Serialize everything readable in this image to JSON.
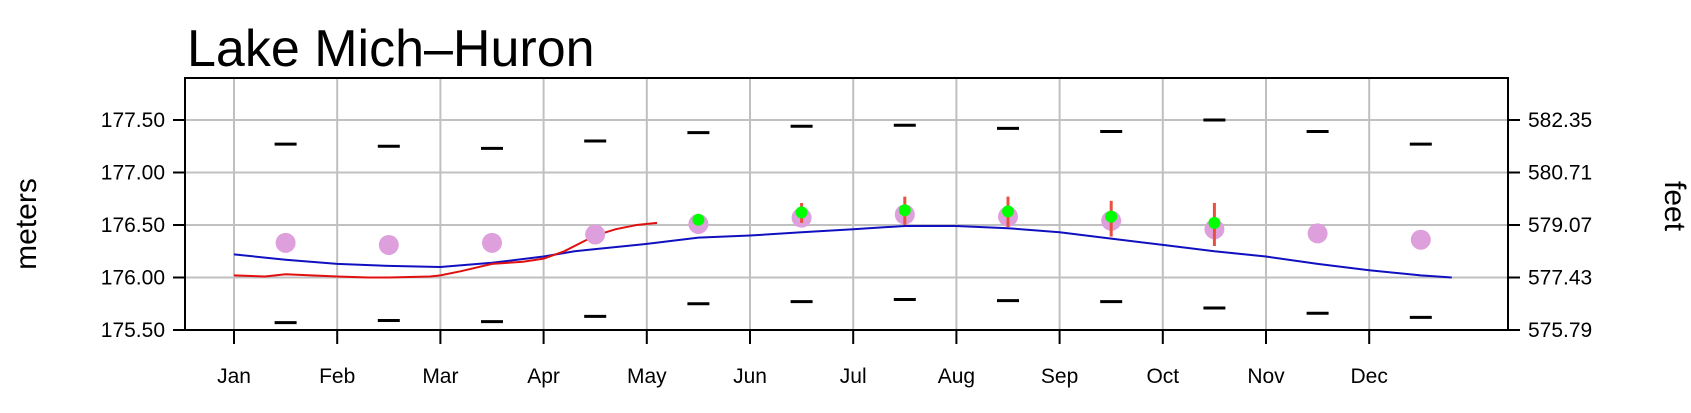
{
  "chart_data": {
    "type": "line",
    "title": "Lake Mich–Huron",
    "ylabel_left": "meters",
    "ylabel_right": "feet",
    "ylim_meters": [
      175.5,
      177.9
    ],
    "left_ticks": [
      "175.50",
      "176.00",
      "176.50",
      "177.00",
      "177.50"
    ],
    "left_tick_values": [
      175.5,
      176.0,
      176.5,
      177.0,
      177.5
    ],
    "right_ticks": [
      "575.79",
      "577.43",
      "579.07",
      "580.71",
      "582.35"
    ],
    "months": [
      "Jan",
      "Feb",
      "Mar",
      "Apr",
      "May",
      "Jun",
      "Jul",
      "Aug",
      "Sep",
      "Oct",
      "Nov",
      "Dec"
    ],
    "grid": true,
    "colors": {
      "blue_line": "#1010c0",
      "red_line": "#e01010",
      "monthly_mean": "#dda0dd",
      "forecast": "#00ff00",
      "forecast_range": "#e85040",
      "extremes": "#000000"
    },
    "monthly_max": [
      177.27,
      177.25,
      177.23,
      177.3,
      177.38,
      177.44,
      177.45,
      177.42,
      177.39,
      177.5,
      177.39,
      177.27
    ],
    "monthly_min": [
      175.57,
      175.59,
      175.58,
      175.63,
      175.75,
      175.77,
      175.79,
      175.78,
      175.77,
      175.71,
      175.66,
      175.62
    ],
    "monthly_mean": [
      176.33,
      176.31,
      176.33,
      176.41,
      176.51,
      176.57,
      176.6,
      176.58,
      176.54,
      176.46,
      176.42,
      176.36
    ],
    "forecast": {
      "months": [
        5,
        6,
        7,
        8,
        9,
        10
      ],
      "values": [
        176.55,
        176.62,
        176.64,
        176.63,
        176.58,
        176.52
      ],
      "low": [
        176.55,
        176.52,
        176.5,
        176.48,
        176.39,
        176.3
      ],
      "high": [
        176.55,
        176.71,
        176.77,
        176.77,
        176.73,
        176.71
      ]
    },
    "blue_line": {
      "x": [
        0.0,
        0.5,
        1.0,
        1.5,
        2.0,
        2.5,
        3.0,
        3.3,
        3.5,
        4.0,
        4.5,
        5.0,
        5.5,
        6.0,
        6.5,
        7.0,
        7.5,
        8.0,
        8.5,
        9.0,
        9.5,
        10.0,
        10.5,
        11.0,
        11.5,
        11.8
      ],
      "y": [
        176.22,
        176.17,
        176.13,
        176.11,
        176.1,
        176.14,
        176.2,
        176.25,
        176.27,
        176.32,
        176.38,
        176.4,
        176.43,
        176.46,
        176.49,
        176.49,
        176.47,
        176.43,
        176.37,
        176.31,
        176.25,
        176.2,
        176.13,
        176.07,
        176.02,
        176.0
      ]
    },
    "red_line": {
      "x": [
        0.0,
        0.3,
        0.5,
        1.0,
        1.3,
        1.5,
        1.9,
        2.0,
        2.2,
        2.5,
        2.8,
        3.0,
        3.2,
        3.5,
        3.7,
        3.9,
        4.1
      ],
      "y": [
        176.02,
        176.01,
        176.03,
        176.01,
        176.0,
        176.0,
        176.01,
        176.02,
        176.06,
        176.13,
        176.15,
        176.18,
        176.25,
        176.4,
        176.46,
        176.5,
        176.52
      ]
    }
  }
}
